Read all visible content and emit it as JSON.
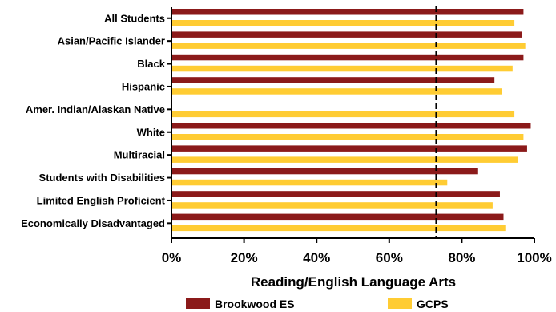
{
  "chart_data": {
    "type": "bar",
    "orientation": "horizontal",
    "categories": [
      "All Students",
      "Asian/Pacific Islander",
      "Black",
      "Hispanic",
      "Amer. Indian/Alaskan Native",
      "White",
      "Multiracial",
      "Students with Disabilities",
      "Limited English Proficient",
      "Economically Disadvantaged"
    ],
    "series": [
      {
        "name": "Brookwood ES",
        "color": "#8B1A1A",
        "values": [
          97,
          96.5,
          97,
          89,
          null,
          99,
          98,
          84.5,
          90.5,
          91.5
        ]
      },
      {
        "name": "GCPS",
        "color": "#FFCC33",
        "values": [
          94.5,
          97.5,
          94,
          91,
          94.5,
          97,
          95.5,
          76,
          88.5,
          92
        ]
      }
    ],
    "xlabel": "Reading/English Language Arts",
    "xlim": [
      0,
      100
    ],
    "xticks": [
      "0%",
      "20%",
      "40%",
      "60%",
      "80%",
      "100%"
    ],
    "tick_values": [
      0,
      20,
      40,
      60,
      80,
      100
    ],
    "reference_line": {
      "value": 73,
      "style": "dashed",
      "color": "#000000"
    },
    "legend_position": "bottom",
    "grid": false
  }
}
